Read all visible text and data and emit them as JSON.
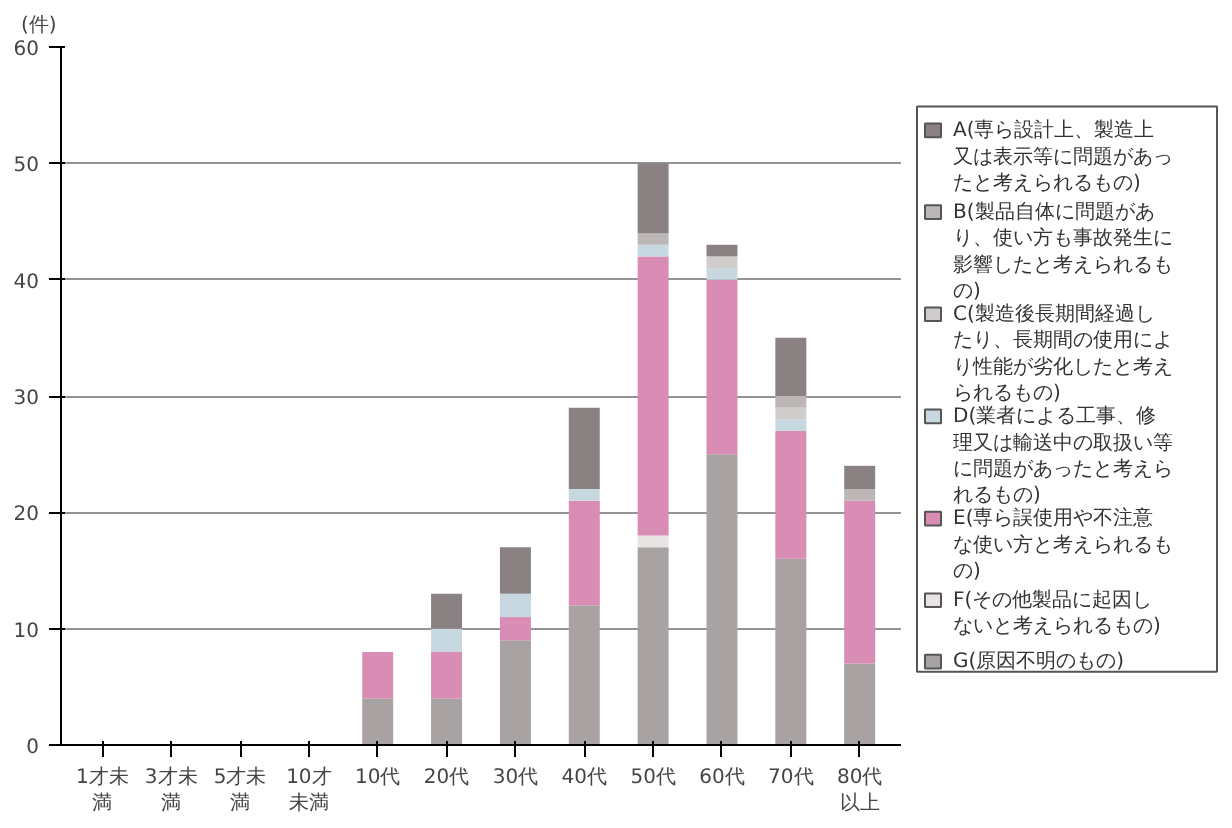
{
  "chart_data": {
    "type": "bar",
    "stacked": true,
    "ylabel": "(件)",
    "categories": [
      "1才未満",
      "3才未満",
      "5才未満",
      "10才未満",
      "10代",
      "20代",
      "30代",
      "40代",
      "50代",
      "60代",
      "70代",
      "80代以上"
    ],
    "ylim": [
      0,
      60
    ],
    "yticks": [
      0,
      10,
      20,
      30,
      40,
      50,
      60
    ],
    "grid": "y",
    "legend": "right",
    "series": [
      {
        "name": "G(原因不明のもの)",
        "color": "#a8a2a2",
        "values": [
          0,
          0,
          0,
          0,
          4,
          4,
          9,
          12,
          17,
          25,
          16,
          7
        ]
      },
      {
        "name": "F(その他製品に起因しないと考えられるもの)",
        "color": "#e8e4e4",
        "values": [
          0,
          0,
          0,
          0,
          0,
          0,
          0,
          0,
          1,
          0,
          0,
          0
        ]
      },
      {
        "name": "E(専ら誤使用や不注意な使い方と考えられるもの)",
        "color": "#d98cb4",
        "values": [
          0,
          0,
          0,
          0,
          4,
          4,
          2,
          9,
          24,
          15,
          11,
          14
        ]
      },
      {
        "name": "D(業者による工事、修理又は輸送中の取扱い等に問題があったと考えられるもの)",
        "color": "#c8d8e0",
        "values": [
          0,
          0,
          0,
          0,
          0,
          2,
          2,
          1,
          1,
          1,
          1,
          0
        ]
      },
      {
        "name": "C(製造後長期間経過したり、長期間の使用により性能が劣化したと考えられるもの)",
        "color": "#d0cccc",
        "values": [
          0,
          0,
          0,
          0,
          0,
          0,
          0,
          0,
          0,
          1,
          1,
          0
        ]
      },
      {
        "name": "B(製品自体に問題があり、使い方も事故発生に影響したと考えられるもの)",
        "color": "#bcb6b6",
        "values": [
          0,
          0,
          0,
          0,
          0,
          0,
          0,
          0,
          1,
          0,
          1,
          1
        ]
      },
      {
        "name": "A(専ら設計上、製造上又は表示等に問題があったと考えられるもの)",
        "color": "#8a8282",
        "values": [
          0,
          0,
          0,
          0,
          0,
          3,
          4,
          7,
          6,
          1,
          5,
          2
        ]
      }
    ]
  }
}
